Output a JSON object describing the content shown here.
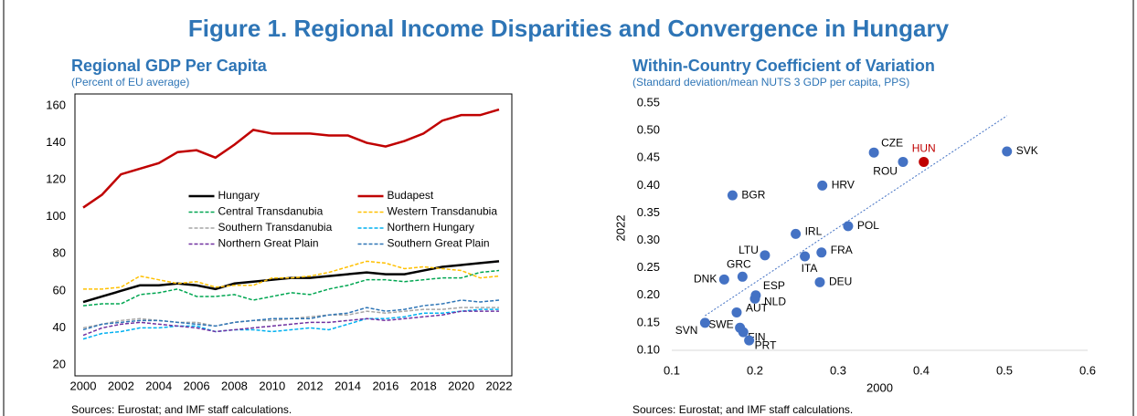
{
  "title": "Figure 1. Regional Income Disparities and Convergence in Hungary",
  "chart_data": [
    {
      "type": "line",
      "title": "Regional GDP Per Capita",
      "subtitle": "(Percent of EU average)",
      "source": "Sources: Eurostat; and IMF staff calculations.",
      "x": [
        2000,
        2001,
        2002,
        2003,
        2004,
        2005,
        2006,
        2007,
        2008,
        2009,
        2010,
        2011,
        2012,
        2013,
        2014,
        2015,
        2016,
        2017,
        2018,
        2019,
        2020,
        2021,
        2022
      ],
      "xlim": [
        2000,
        2022
      ],
      "xticks": [
        2000,
        2002,
        2004,
        2006,
        2008,
        2010,
        2012,
        2014,
        2016,
        2018,
        2020,
        2022
      ],
      "ylim": [
        20,
        160
      ],
      "yticks": [
        20,
        40,
        60,
        80,
        100,
        120,
        140,
        160
      ],
      "legend": "center",
      "series": [
        {
          "name": "Hungary",
          "color": "#000000",
          "dashed": false,
          "values": [
            54,
            57,
            60,
            63,
            63,
            64,
            63,
            61,
            64,
            65,
            66,
            67,
            67,
            68,
            69,
            70,
            69,
            69,
            71,
            73,
            74,
            75,
            76
          ]
        },
        {
          "name": "Budapest",
          "color": "#c00000",
          "dashed": false,
          "values": [
            105,
            112,
            123,
            126,
            129,
            135,
            136,
            132,
            139,
            147,
            145,
            145,
            145,
            144,
            144,
            140,
            138,
            141,
            145,
            152,
            155,
            155,
            158
          ]
        },
        {
          "name": "Central Transdanubia",
          "color": "#00a651",
          "dashed": true,
          "values": [
            52,
            53,
            53,
            58,
            59,
            61,
            57,
            57,
            58,
            55,
            57,
            59,
            58,
            61,
            63,
            66,
            66,
            65,
            66,
            67,
            67,
            70,
            71
          ]
        },
        {
          "name": "Western Transdanubia",
          "color": "#ffc000",
          "dashed": true,
          "values": [
            61,
            61,
            62,
            68,
            66,
            64,
            65,
            62,
            63,
            63,
            67,
            67,
            68,
            70,
            73,
            76,
            75,
            72,
            73,
            72,
            71,
            67,
            68
          ]
        },
        {
          "name": "Southern Transdanubia",
          "color": "#a6a6a6",
          "dashed": true,
          "values": [
            40,
            42,
            44,
            45,
            44,
            43,
            43,
            41,
            43,
            44,
            44,
            45,
            46,
            47,
            47,
            49,
            48,
            49,
            50,
            50,
            51,
            51,
            51
          ]
        },
        {
          "name": "Northern Hungary",
          "color": "#00b0f0",
          "dashed": true,
          "values": [
            34,
            37,
            38,
            40,
            40,
            41,
            41,
            38,
            39,
            39,
            38,
            39,
            40,
            39,
            42,
            45,
            45,
            46,
            48,
            48,
            49,
            50,
            50
          ]
        },
        {
          "name": "Northern Great Plain",
          "color": "#7030a0",
          "dashed": true,
          "values": [
            36,
            40,
            42,
            43,
            42,
            41,
            40,
            38,
            39,
            40,
            41,
            42,
            43,
            43,
            44,
            45,
            44,
            45,
            46,
            47,
            49,
            49,
            49
          ]
        },
        {
          "name": "Southern Great Plain",
          "color": "#2e75b6",
          "dashed": true,
          "values": [
            39,
            42,
            43,
            44,
            44,
            43,
            42,
            41,
            43,
            44,
            45,
            45,
            45,
            47,
            48,
            51,
            49,
            50,
            52,
            53,
            55,
            54,
            55
          ]
        }
      ]
    },
    {
      "type": "scatter",
      "title": "Within-Country Coefficient of Variation",
      "subtitle": "(Standard deviation/mean NUTS 3 GDP per capita, PPS)",
      "source": "Sources: Eurostat; and IMF staff calculations.",
      "xlabel": "2000",
      "ylabel": "2022",
      "xlim": [
        0.1,
        0.6
      ],
      "xticks": [
        0.1,
        0.2,
        0.3,
        0.4,
        0.5,
        0.6
      ],
      "ylim": [
        0.1,
        0.55
      ],
      "yticks": [
        {
          "value": 0.1,
          "label": "0.10"
        },
        0.15,
        {
          "value": 0.2,
          "label": "0.20"
        },
        0.25,
        {
          "value": 0.3,
          "label": "0.30"
        },
        0.35,
        {
          "value": 0.4,
          "label": "0.40"
        },
        0.45,
        {
          "value": 0.5,
          "label": "0.50"
        },
        0.55
      ],
      "color": "#4472c4",
      "points": [
        {
          "label": "CZE",
          "x": 0.343,
          "y": 0.46
        },
        {
          "label": "ROU",
          "x": 0.378,
          "y": 0.443
        },
        {
          "label": "HUN",
          "x": 0.403,
          "y": 0.443,
          "color": "#c00000"
        },
        {
          "label": "SVK",
          "x": 0.503,
          "y": 0.462
        },
        {
          "label": "BGR",
          "x": 0.173,
          "y": 0.382
        },
        {
          "label": "HRV",
          "x": 0.281,
          "y": 0.4
        },
        {
          "label": "IRL",
          "x": 0.249,
          "y": 0.312
        },
        {
          "label": "POL",
          "x": 0.312,
          "y": 0.326
        },
        {
          "label": "LTU",
          "x": 0.212,
          "y": 0.273
        },
        {
          "label": "FRA",
          "x": 0.28,
          "y": 0.278
        },
        {
          "label": "ITA",
          "x": 0.26,
          "y": 0.271
        },
        {
          "label": "GRC",
          "x": 0.185,
          "y": 0.234
        },
        {
          "label": "DNK",
          "x": 0.163,
          "y": 0.229
        },
        {
          "label": "DEU",
          "x": 0.278,
          "y": 0.224
        },
        {
          "label": "ESP",
          "x": 0.201,
          "y": 0.2
        },
        {
          "label": "NLD",
          "x": 0.2,
          "y": 0.194
        },
        {
          "label": "AUT",
          "x": 0.178,
          "y": 0.169
        },
        {
          "label": "SWE",
          "x": 0.182,
          "y": 0.141
        },
        {
          "label": "FIN",
          "x": 0.186,
          "y": 0.133
        },
        {
          "label": "PRT",
          "x": 0.193,
          "y": 0.118
        },
        {
          "label": "SVN",
          "x": 0.14,
          "y": 0.15
        }
      ],
      "trendline": {
        "color": "#4472c4",
        "x": [
          0.14,
          0.503
        ],
        "y": [
          0.163,
          0.527
        ]
      }
    }
  ]
}
